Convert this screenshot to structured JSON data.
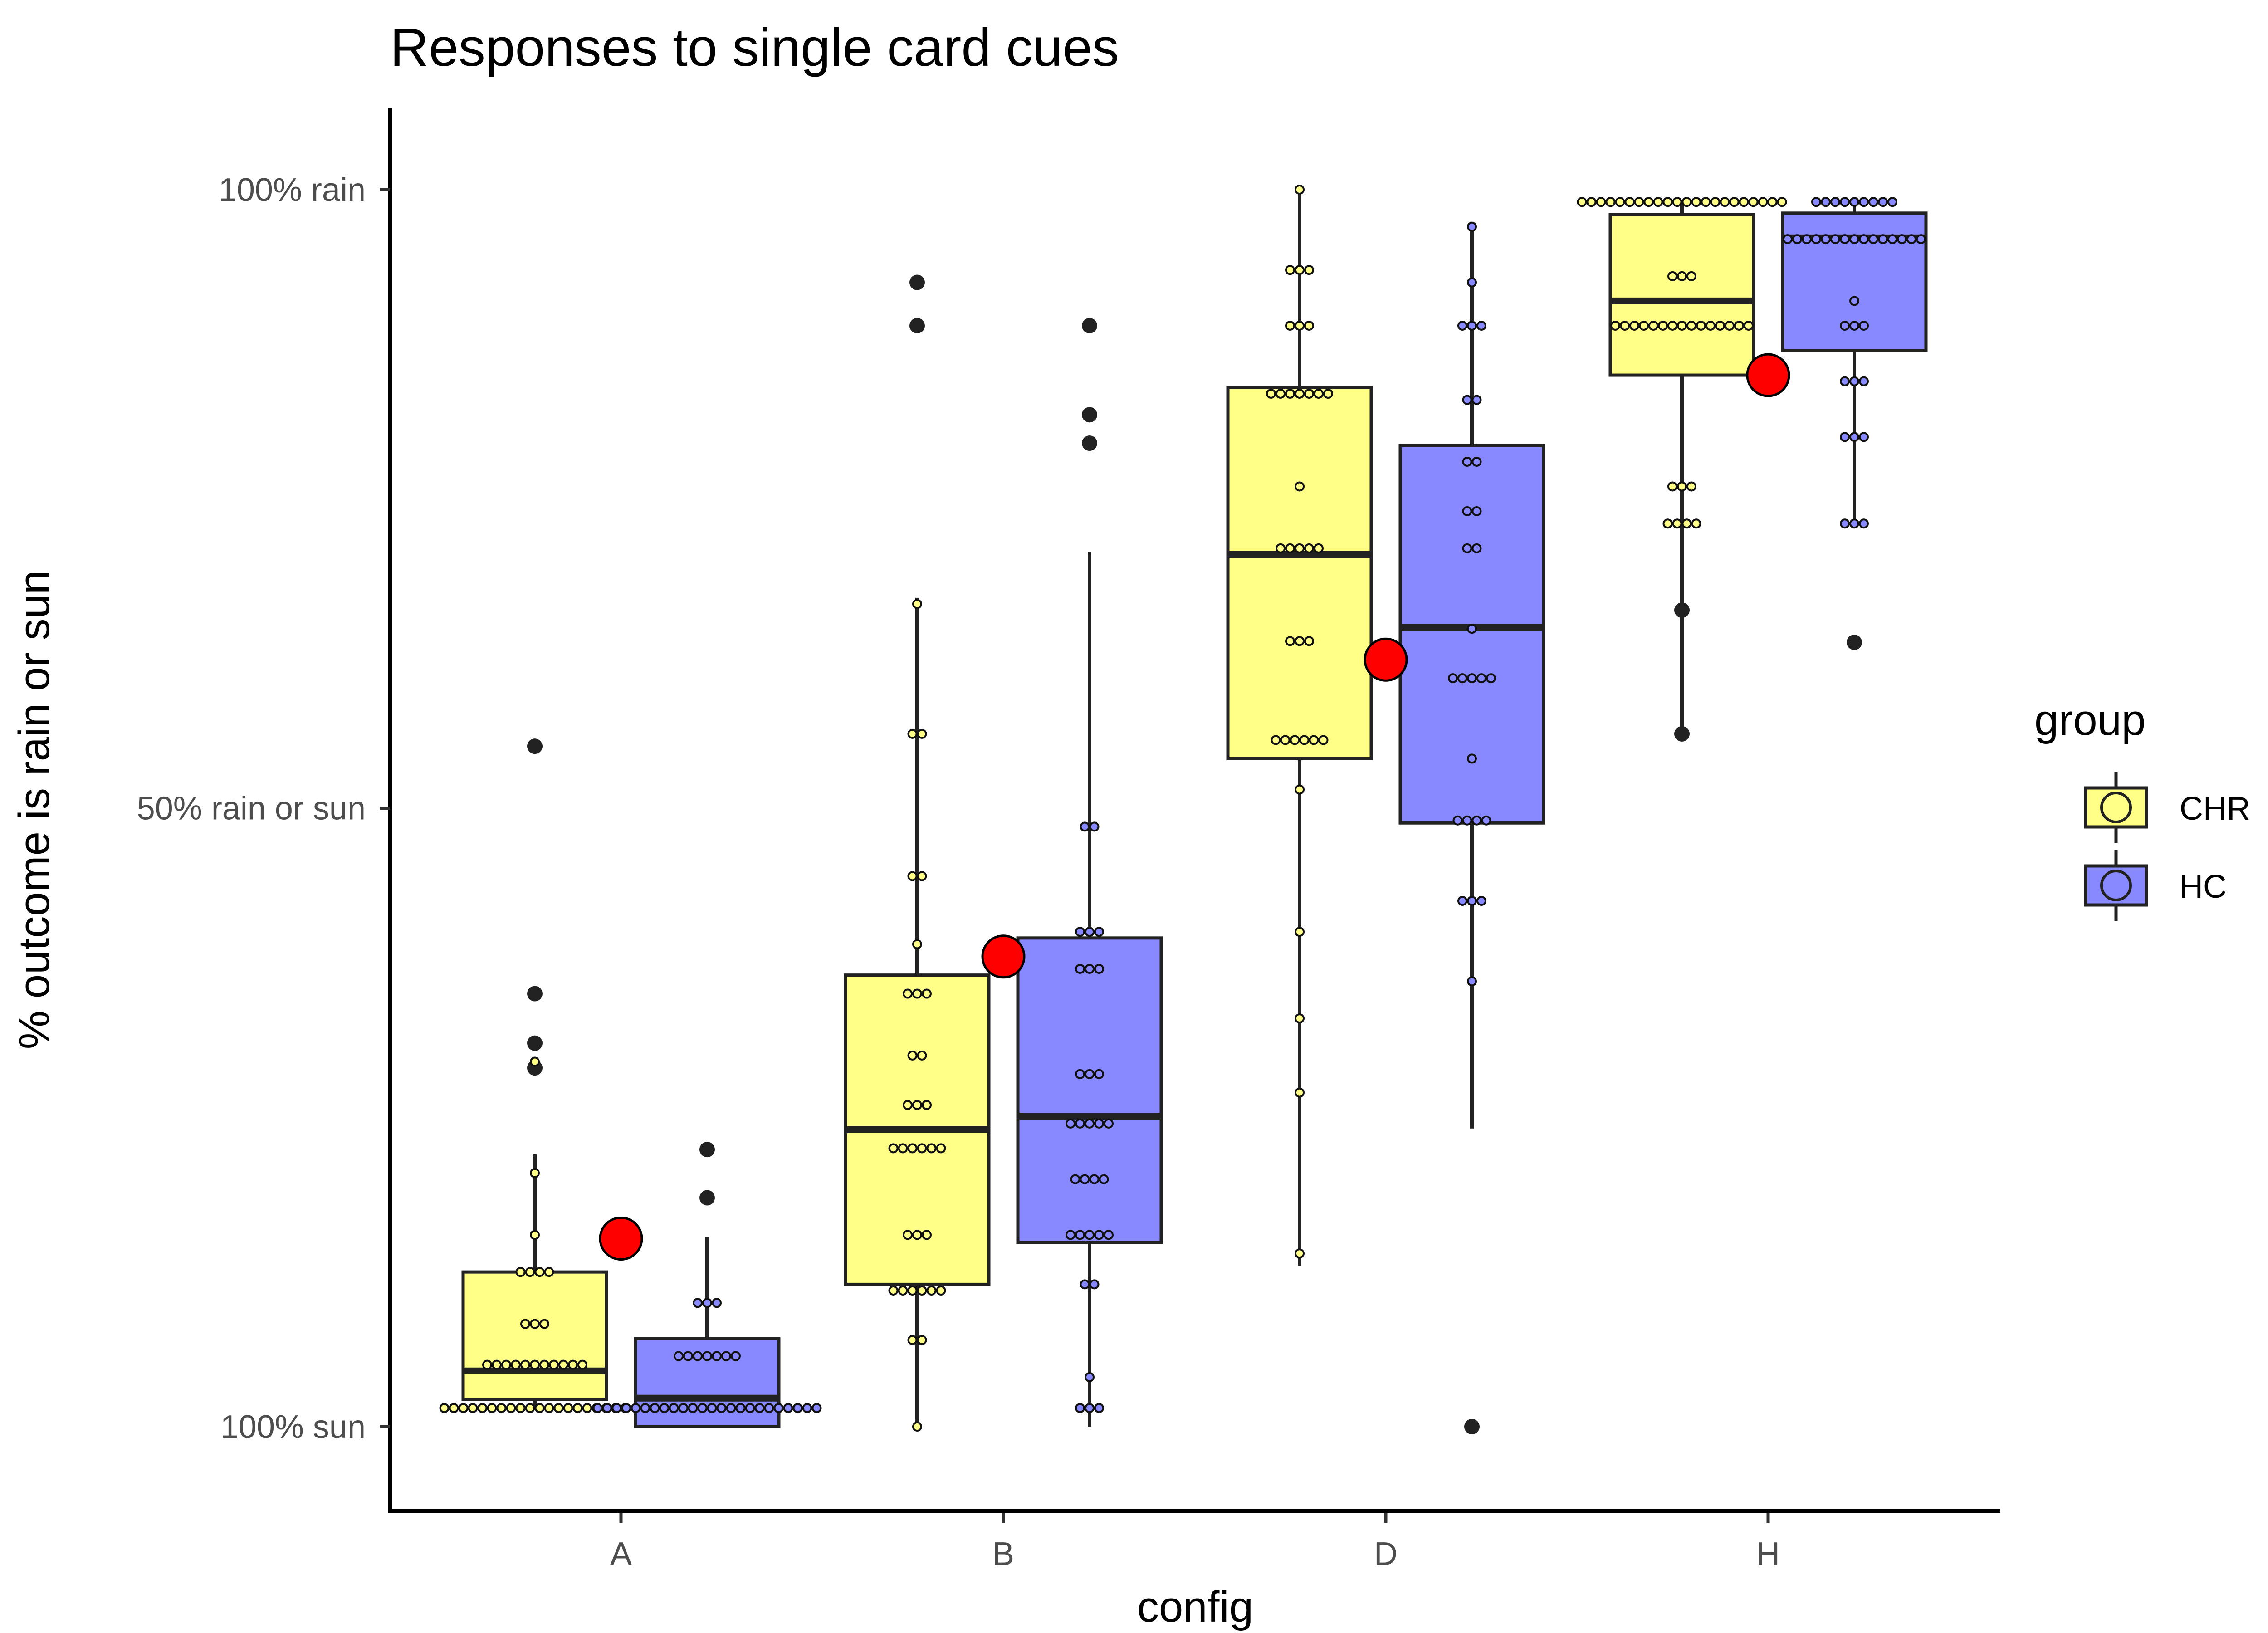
{
  "chart_data": {
    "type": "box",
    "title": "Responses to single card cues",
    "xlabel": "config",
    "ylabel": "% outcome is rain or sun",
    "categories": [
      "A",
      "B",
      "D",
      "H"
    ],
    "y_ticks": [
      {
        "value": 0,
        "label": "100% sun"
      },
      {
        "value": 50,
        "label": "50% rain or sun"
      },
      {
        "value": 100,
        "label": "100% rain"
      }
    ],
    "ylim": [
      -6.7,
      106.7
    ],
    "grid": false,
    "legend": {
      "title": "group",
      "position": "right",
      "entries": [
        "CHR",
        "HC"
      ]
    },
    "colors": {
      "CHR": "#FFFF88",
      "HC": "#8888FF",
      "reference": "#FF0000",
      "outline": "#222222"
    },
    "series": [
      {
        "name": "CHR",
        "boxes": [
          {
            "category": "A",
            "whisker_low": 1.5,
            "q1": 2.2,
            "median": 4.5,
            "q3": 12.5,
            "whisker_high": 22,
            "outliers": [
              55,
              35,
              31,
              29
            ]
          },
          {
            "category": "B",
            "whisker_low": 0,
            "q1": 11.5,
            "median": 24,
            "q3": 36.5,
            "whisker_high": 67,
            "outliers": [
              92.5,
              89
            ]
          },
          {
            "category": "D",
            "whisker_low": 13,
            "q1": 54,
            "median": 70.5,
            "q3": 84,
            "whisker_high": 100,
            "outliers": []
          },
          {
            "category": "H",
            "whisker_low": 56,
            "q1": 85,
            "median": 91,
            "q3": 98,
            "whisker_high": 99,
            "outliers": [
              66,
              56
            ]
          }
        ]
      },
      {
        "name": "HC",
        "boxes": [
          {
            "category": "A",
            "whisker_low": 0,
            "q1": 0,
            "median": 2.3,
            "q3": 7.1,
            "whisker_high": 15.3,
            "outliers": [
              22.4,
              18.5
            ]
          },
          {
            "category": "B",
            "whisker_low": 0,
            "q1": 14.9,
            "median": 25.1,
            "q3": 39.5,
            "whisker_high": 70.7,
            "outliers": [
              89,
              81.8,
              79.5
            ]
          },
          {
            "category": "D",
            "whisker_low": 24.1,
            "q1": 48.8,
            "median": 64.6,
            "q3": 79.3,
            "whisker_high": 97.4,
            "outliers": [
              0
            ]
          },
          {
            "category": "H",
            "whisker_low": 73,
            "q1": 87,
            "median": 96.1,
            "q3": 98.1,
            "whisker_high": 99.3,
            "outliers": [
              63.4
            ]
          }
        ]
      }
    ],
    "reference_points": [
      {
        "category": "A",
        "value": 15.2
      },
      {
        "category": "B",
        "value": 38
      },
      {
        "category": "D",
        "value": 62
      },
      {
        "category": "H",
        "value": 85
      }
    ],
    "dots": [
      {
        "group": "CHR",
        "category": "A",
        "values": [
          1.5,
          1.5,
          1.5,
          1.5,
          1.5,
          1.5,
          1.5,
          1.5,
          1.5,
          1.5,
          1.5,
          1.5,
          1.5,
          1.5,
          1.5,
          1.5,
          1.5,
          1.5,
          1.5,
          1.5,
          5,
          5,
          5,
          5,
          5,
          5,
          5,
          5,
          5,
          5,
          5,
          8.3,
          8.3,
          8.3,
          12.5,
          12.5,
          12.5,
          12.5,
          15.5,
          20.5,
          29.5
        ]
      },
      {
        "group": "CHR",
        "category": "B",
        "values": [
          0,
          7,
          7,
          11,
          11,
          11,
          11,
          11,
          11,
          15.5,
          15.5,
          15.5,
          22.5,
          22.5,
          22.5,
          22.5,
          22.5,
          22.5,
          26,
          26,
          26,
          30,
          30,
          35,
          35,
          35,
          39,
          44.5,
          44.5,
          56,
          56,
          66.5
        ]
      },
      {
        "group": "CHR",
        "category": "D",
        "values": [
          14,
          27,
          33,
          40,
          51.5,
          55.5,
          55.5,
          55.5,
          55.5,
          55.5,
          55.5,
          63.5,
          63.5,
          63.5,
          71,
          71,
          71,
          71,
          71,
          76,
          83.5,
          83.5,
          83.5,
          83.5,
          83.5,
          83.5,
          83.5,
          89,
          89,
          89,
          93.5,
          93.5,
          93.5,
          100
        ]
      },
      {
        "group": "CHR",
        "category": "H",
        "values": [
          73,
          73,
          73,
          73,
          76,
          76,
          76,
          89,
          89,
          89,
          89,
          89,
          89,
          89,
          89,
          89,
          89,
          89,
          89,
          89,
          89,
          89,
          93,
          93,
          93,
          99,
          99,
          99,
          99,
          99,
          99,
          99,
          99,
          99,
          99,
          99,
          99,
          99,
          99,
          99,
          99,
          99,
          99,
          99,
          99,
          99,
          99
        ]
      },
      {
        "group": "HC",
        "category": "A",
        "values": [
          1.5,
          1.5,
          1.5,
          1.5,
          1.5,
          1.5,
          1.5,
          1.5,
          1.5,
          1.5,
          1.5,
          1.5,
          1.5,
          1.5,
          1.5,
          1.5,
          1.5,
          1.5,
          1.5,
          1.5,
          1.5,
          1.5,
          1.5,
          1.5,
          5.7,
          5.7,
          5.7,
          5.7,
          5.7,
          5.7,
          5.7,
          10,
          10,
          10
        ]
      },
      {
        "group": "HC",
        "category": "B",
        "values": [
          1.5,
          1.5,
          1.5,
          4,
          11.5,
          11.5,
          15.5,
          15.5,
          15.5,
          15.5,
          15.5,
          20,
          20,
          20,
          20,
          24.5,
          24.5,
          24.5,
          24.5,
          24.5,
          28.5,
          28.5,
          28.5,
          37,
          37,
          37,
          40,
          40,
          40,
          48.5,
          48.5
        ]
      },
      {
        "group": "HC",
        "category": "D",
        "values": [
          36,
          42.5,
          42.5,
          42.5,
          49,
          49,
          49,
          49,
          54,
          60.5,
          60.5,
          60.5,
          60.5,
          60.5,
          64.5,
          71,
          71,
          74,
          74,
          78,
          78,
          83,
          83,
          89,
          89,
          89,
          92.5,
          97
        ]
      },
      {
        "group": "HC",
        "category": "H",
        "values": [
          73,
          73,
          73,
          80,
          80,
          80,
          84.5,
          84.5,
          84.5,
          89,
          89,
          89,
          91,
          96,
          96,
          96,
          96,
          96,
          96,
          96,
          96,
          96,
          96,
          96,
          96,
          96,
          96,
          96,
          99,
          99,
          99,
          99,
          99,
          99,
          99,
          99,
          99
        ]
      }
    ]
  }
}
